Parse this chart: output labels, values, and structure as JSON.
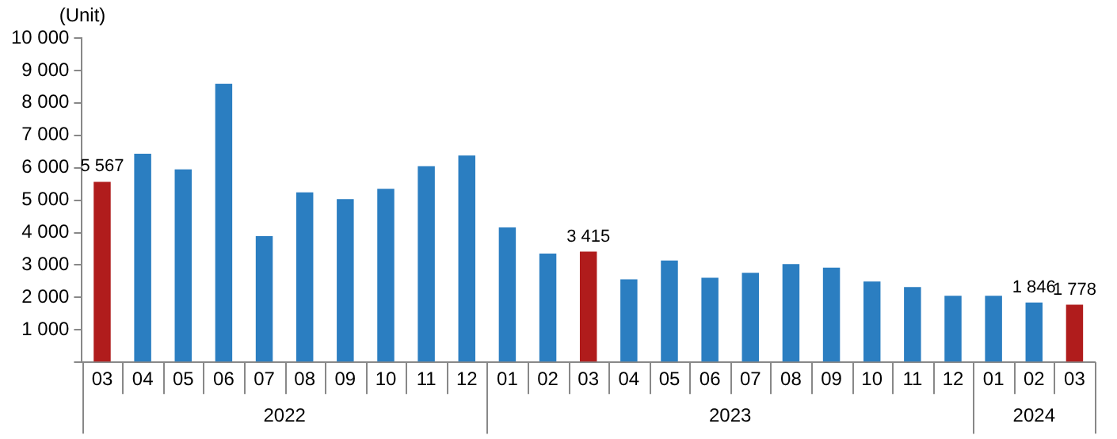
{
  "chart_data": {
    "type": "bar",
    "ylabel": "(Unit)",
    "categories": [
      "03",
      "04",
      "05",
      "06",
      "07",
      "08",
      "09",
      "10",
      "11",
      "12",
      "01",
      "02",
      "03",
      "04",
      "05",
      "06",
      "07",
      "08",
      "09",
      "10",
      "11",
      "12",
      "01",
      "02",
      "03"
    ],
    "values": [
      5567,
      6430,
      5950,
      8590,
      3890,
      5240,
      5030,
      5350,
      6050,
      6380,
      4160,
      3350,
      3415,
      2560,
      3140,
      2610,
      2760,
      3030,
      2920,
      2490,
      2320,
      2050,
      2050,
      1846,
      1778
    ],
    "colors": [
      "#b01c1c",
      "#2b7ec1",
      "#2b7ec1",
      "#2b7ec1",
      "#2b7ec1",
      "#2b7ec1",
      "#2b7ec1",
      "#2b7ec1",
      "#2b7ec1",
      "#2b7ec1",
      "#2b7ec1",
      "#2b7ec1",
      "#b01c1c",
      "#2b7ec1",
      "#2b7ec1",
      "#2b7ec1",
      "#2b7ec1",
      "#2b7ec1",
      "#2b7ec1",
      "#2b7ec1",
      "#2b7ec1",
      "#2b7ec1",
      "#2b7ec1",
      "#2b7ec1",
      "#b01c1c"
    ],
    "value_labels": [
      "5 567",
      null,
      null,
      null,
      null,
      null,
      null,
      null,
      null,
      null,
      null,
      null,
      "3 415",
      null,
      null,
      null,
      null,
      null,
      null,
      null,
      null,
      null,
      null,
      "1 846",
      "1 778"
    ],
    "annotations": [
      "2022",
      "2023",
      "2024"
    ],
    "ylim": [
      0,
      10000
    ],
    "yticks": [
      {
        "value": 0,
        "label": null
      },
      {
        "value": 1000,
        "label": "1 000"
      },
      {
        "value": 2000,
        "label": "2 000"
      },
      {
        "value": 3000,
        "label": "3 000"
      },
      {
        "value": 4000,
        "label": "4 000"
      },
      {
        "value": 5000,
        "label": "5 000"
      },
      {
        "value": 6000,
        "label": "6 000"
      },
      {
        "value": 7000,
        "label": "7 000"
      },
      {
        "value": 8000,
        "label": "8 000"
      },
      {
        "value": 9000,
        "label": "9 000"
      },
      {
        "value": 10000,
        "label": "10 000"
      }
    ],
    "grid": false,
    "legend": false
  }
}
